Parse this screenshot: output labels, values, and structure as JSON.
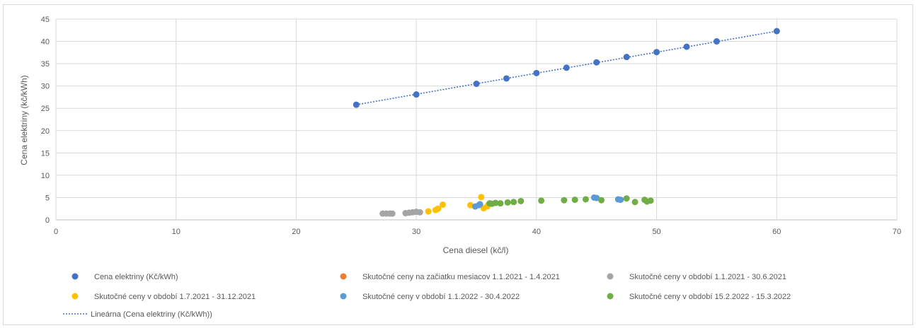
{
  "chart_data": {
    "type": "scatter",
    "title": "",
    "xlabel": "Cena diesel (kč/l)",
    "ylabel": "Cena elektriny (kč/kWh)",
    "xlim": [
      0,
      70
    ],
    "ylim": [
      0,
      45
    ],
    "x_ticks": [
      0,
      10,
      20,
      30,
      40,
      50,
      60,
      70
    ],
    "y_ticks": [
      0,
      5,
      10,
      15,
      20,
      25,
      30,
      35,
      40,
      45
    ],
    "grid": "vertical and horizontal gridlines",
    "legend_position": "bottom",
    "series": [
      {
        "name": "Cena elektriny (Kč/kWh)",
        "color": "#4472c4",
        "points": [
          [
            25,
            25.8
          ],
          [
            30,
            28.1
          ],
          [
            35,
            30.5
          ],
          [
            37.5,
            31.7
          ],
          [
            40,
            32.9
          ],
          [
            42.5,
            34.1
          ],
          [
            45,
            35.3
          ],
          [
            47.5,
            36.5
          ],
          [
            50,
            37.6
          ],
          [
            52.5,
            38.8
          ],
          [
            55,
            40.0
          ],
          [
            60,
            42.3
          ]
        ]
      },
      {
        "name": "Skutočné ceny na začiatku mesiacov 1.1.2021 - 1.4.2021",
        "color": "#ed7d31",
        "points": []
      },
      {
        "name": "Skutočné ceny v období 1.1.2021 - 30.6.2021",
        "color": "#a5a5a5",
        "points": [
          [
            27.2,
            1.4
          ],
          [
            27.5,
            1.4
          ],
          [
            27.8,
            1.4
          ],
          [
            28.0,
            1.4
          ],
          [
            29.1,
            1.5
          ],
          [
            29.4,
            1.6
          ],
          [
            29.7,
            1.7
          ],
          [
            30.0,
            1.8
          ],
          [
            30.3,
            1.7
          ]
        ]
      },
      {
        "name": "Skutočné ceny v období 1.7.2021 - 31.12.2021",
        "color": "#ffc000",
        "points": [
          [
            31.0,
            1.9
          ],
          [
            31.6,
            2.2
          ],
          [
            31.8,
            2.5
          ],
          [
            32.2,
            3.4
          ],
          [
            34.5,
            3.3
          ],
          [
            35.4,
            5.1
          ],
          [
            35.6,
            2.6
          ],
          [
            35.9,
            3.0
          ],
          [
            36.0,
            3.4
          ]
        ]
      },
      {
        "name": "Skutočné ceny v období 1.1.2022 - 30.4.2022",
        "color": "#5b9bd5",
        "points": [
          [
            34.9,
            3.0
          ],
          [
            35.2,
            3.3
          ],
          [
            35.3,
            3.5
          ],
          [
            44.8,
            5.0
          ],
          [
            45.0,
            4.9
          ],
          [
            46.8,
            4.6
          ],
          [
            47.0,
            4.5
          ]
        ]
      },
      {
        "name": "Skutočné ceny v období 15.2.2022 - 15.3.2022",
        "color": "#70ad47",
        "points": [
          [
            36.1,
            3.7
          ],
          [
            36.3,
            3.6
          ],
          [
            36.6,
            3.8
          ],
          [
            37.0,
            3.7
          ],
          [
            37.6,
            3.9
          ],
          [
            38.1,
            4.0
          ],
          [
            38.7,
            4.2
          ],
          [
            40.4,
            4.3
          ],
          [
            42.3,
            4.4
          ],
          [
            43.2,
            4.5
          ],
          [
            44.1,
            4.6
          ],
          [
            45.4,
            4.4
          ],
          [
            47.5,
            4.8
          ],
          [
            48.2,
            4.0
          ],
          [
            49.0,
            4.5
          ],
          [
            49.2,
            4.1
          ],
          [
            49.5,
            4.3
          ]
        ]
      }
    ],
    "trendline": {
      "name": "Lineárna (Cena elektriny (Kč/kWh))",
      "color": "#4472c4",
      "style": "dotted",
      "from": [
        25,
        25.8
      ],
      "to": [
        60,
        42.3
      ]
    }
  }
}
